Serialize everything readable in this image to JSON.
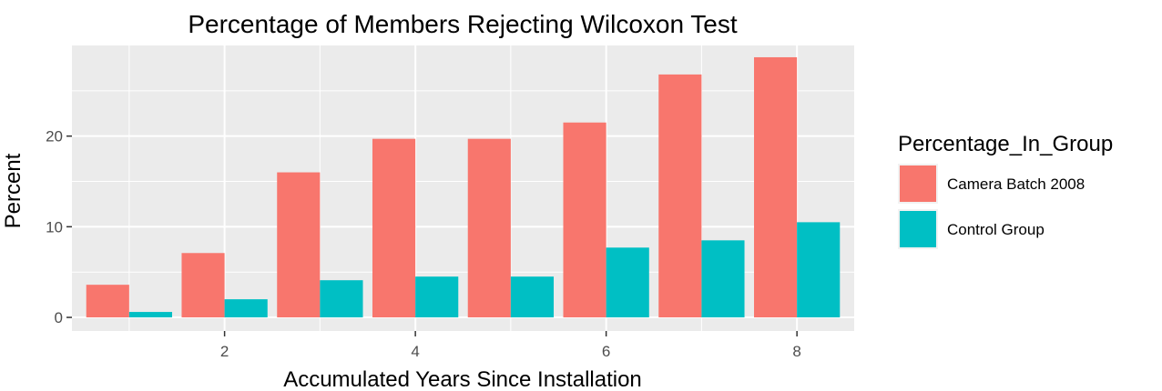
{
  "chart_data": {
    "type": "bar",
    "title": "Percentage of Members Rejecting Wilcoxon Test",
    "xlabel": "Accumulated  Years  Since  Installation",
    "ylabel": "Percent",
    "x": [
      1,
      2,
      3,
      4,
      5,
      6,
      7,
      8
    ],
    "x_ticks": [
      2,
      4,
      6,
      8
    ],
    "y_ticks": [
      0,
      10,
      20
    ],
    "xlim": [
      0.4,
      8.6
    ],
    "ylim": [
      -1.5,
      30.0
    ],
    "grid": true,
    "legend": {
      "title": "Percentage_In_Group",
      "placement": "right"
    },
    "series": [
      {
        "name": "Camera Batch 2008",
        "color": "#F8766D",
        "values": [
          3.6,
          7.1,
          16.0,
          19.7,
          19.7,
          21.5,
          26.8,
          28.7
        ]
      },
      {
        "name": "Control Group",
        "color": "#00BFC4",
        "values": [
          0.6,
          2.0,
          4.1,
          4.5,
          4.5,
          7.7,
          8.5,
          10.5
        ]
      }
    ],
    "panel_background": "#EBEBEB",
    "grid_color": "#FFFFFF"
  }
}
